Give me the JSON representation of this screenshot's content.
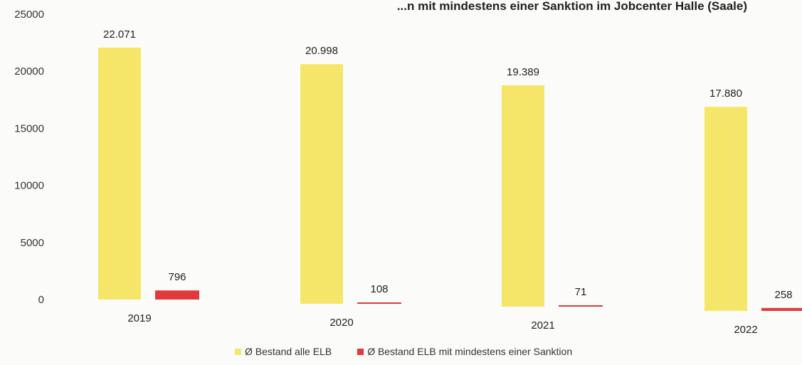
{
  "chart_data": {
    "type": "bar",
    "title": "...n mit mindestens einer Sanktion im Jobcenter Halle (Saale)",
    "categories": [
      "2019",
      "2020",
      "2021",
      "2022"
    ],
    "series": [
      {
        "name": "Ø Bestand alle ELB",
        "values": [
          22071,
          20998,
          19389,
          17880
        ],
        "labels": [
          "22.071",
          "20.998",
          "19.389",
          "17.880"
        ],
        "color": "#f5e66a"
      },
      {
        "name": "Ø Bestand ELB mit mindestens einer Sanktion",
        "values": [
          796,
          108,
          71,
          258
        ],
        "labels": [
          "796",
          "108",
          "71",
          "258"
        ],
        "color": "#e03a3e"
      }
    ],
    "yticks": [
      0,
      5000,
      10000,
      15000,
      20000,
      25000
    ],
    "ylim": [
      0,
      25000
    ],
    "grid": false,
    "legend_position": "bottom"
  }
}
